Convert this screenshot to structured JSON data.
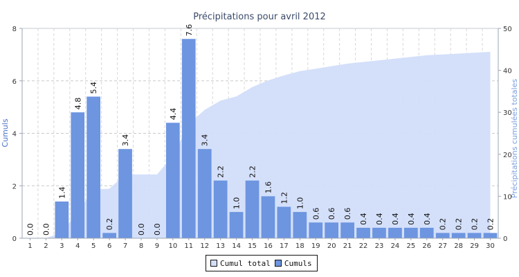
{
  "chart_data": {
    "type": "bar",
    "title": "Précipitations pour avril 2012",
    "ylabel": "Cumuls",
    "y2label": "Précipitations cumulées totales",
    "categories": [
      "1",
      "2",
      "3",
      "4",
      "5",
      "6",
      "7",
      "8",
      "9",
      "10",
      "11",
      "12",
      "13",
      "14",
      "15",
      "16",
      "17",
      "18",
      "19",
      "20",
      "21",
      "22",
      "23",
      "24",
      "25",
      "26",
      "27",
      "28",
      "29",
      "30"
    ],
    "ylim": [
      0,
      8
    ],
    "y2lim": [
      0,
      50
    ],
    "yticks": [
      0,
      2,
      4,
      6,
      8
    ],
    "y2ticks": [
      0,
      10,
      20,
      30,
      40,
      50
    ],
    "grid": true,
    "legend_position": "bottom-center",
    "series": [
      {
        "name": "Cumul total",
        "type": "area",
        "axis": "right",
        "color": "#d2defa",
        "values": [
          0.0,
          0.0,
          1.4,
          6.2,
          11.6,
          11.8,
          15.2,
          15.2,
          15.2,
          19.6,
          27.2,
          30.6,
          32.8,
          33.8,
          36.0,
          37.6,
          38.8,
          39.8,
          40.4,
          41.0,
          41.6,
          42.0,
          42.4,
          42.8,
          43.2,
          43.6,
          43.8,
          44.0,
          44.2,
          44.4
        ]
      },
      {
        "name": "Cumuls",
        "type": "bar",
        "axis": "left",
        "color": "#6d95e0",
        "values": [
          0.0,
          0.0,
          1.4,
          4.8,
          5.4,
          0.2,
          3.4,
          0.0,
          0.0,
          4.4,
          7.6,
          3.4,
          2.2,
          1.0,
          2.2,
          1.6,
          1.2,
          1.0,
          0.6,
          0.6,
          0.6,
          0.4,
          0.4,
          0.4,
          0.4,
          0.4,
          0.2,
          0.2,
          0.2,
          0.2
        ],
        "labels": [
          "0.0",
          "0.0",
          "1.4",
          "4.8",
          "5.4",
          "0.2",
          "3.4",
          "0.0",
          "0.0",
          "4.4",
          "7.6",
          "3.4",
          "2.2",
          "1.0",
          "2.2",
          "1.6",
          "1.2",
          "1.0",
          "0.6",
          "0.6",
          "0.6",
          "0.4",
          "0.4",
          "0.4",
          "0.4",
          "0.4",
          "0.2",
          "0.2",
          "0.2",
          "0.2"
        ]
      }
    ]
  },
  "colors": {
    "axis_left": "#4a74c9",
    "axis_right": "#7a9ee0",
    "legend_area": "#d2defa",
    "legend_bar": "#6d95e0"
  }
}
